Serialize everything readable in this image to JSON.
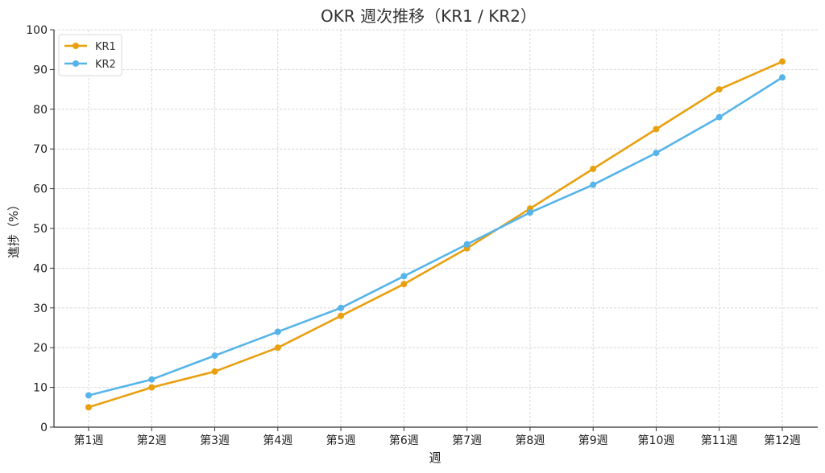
{
  "chart_data": {
    "type": "line",
    "title": "OKR 週次推移（KR1 / KR2）",
    "xlabel": "週",
    "ylabel": "進捗（%）",
    "categories": [
      "第1週",
      "第2週",
      "第3週",
      "第4週",
      "第5週",
      "第6週",
      "第7週",
      "第8週",
      "第9週",
      "第10週",
      "第11週",
      "第12週"
    ],
    "ylim": [
      0,
      100
    ],
    "yticks": [
      0,
      10,
      20,
      30,
      40,
      50,
      60,
      70,
      80,
      90,
      100
    ],
    "grid": true,
    "legend_position": "top-left",
    "series": [
      {
        "name": "KR1",
        "color": "#E8A00F",
        "values": [
          5,
          10,
          14,
          20,
          28,
          36,
          45,
          55,
          65,
          75,
          85,
          92
        ]
      },
      {
        "name": "KR2",
        "color": "#56B4E9",
        "values": [
          8,
          12,
          18,
          24,
          30,
          38,
          46,
          54,
          61,
          69,
          78,
          88
        ]
      }
    ]
  }
}
